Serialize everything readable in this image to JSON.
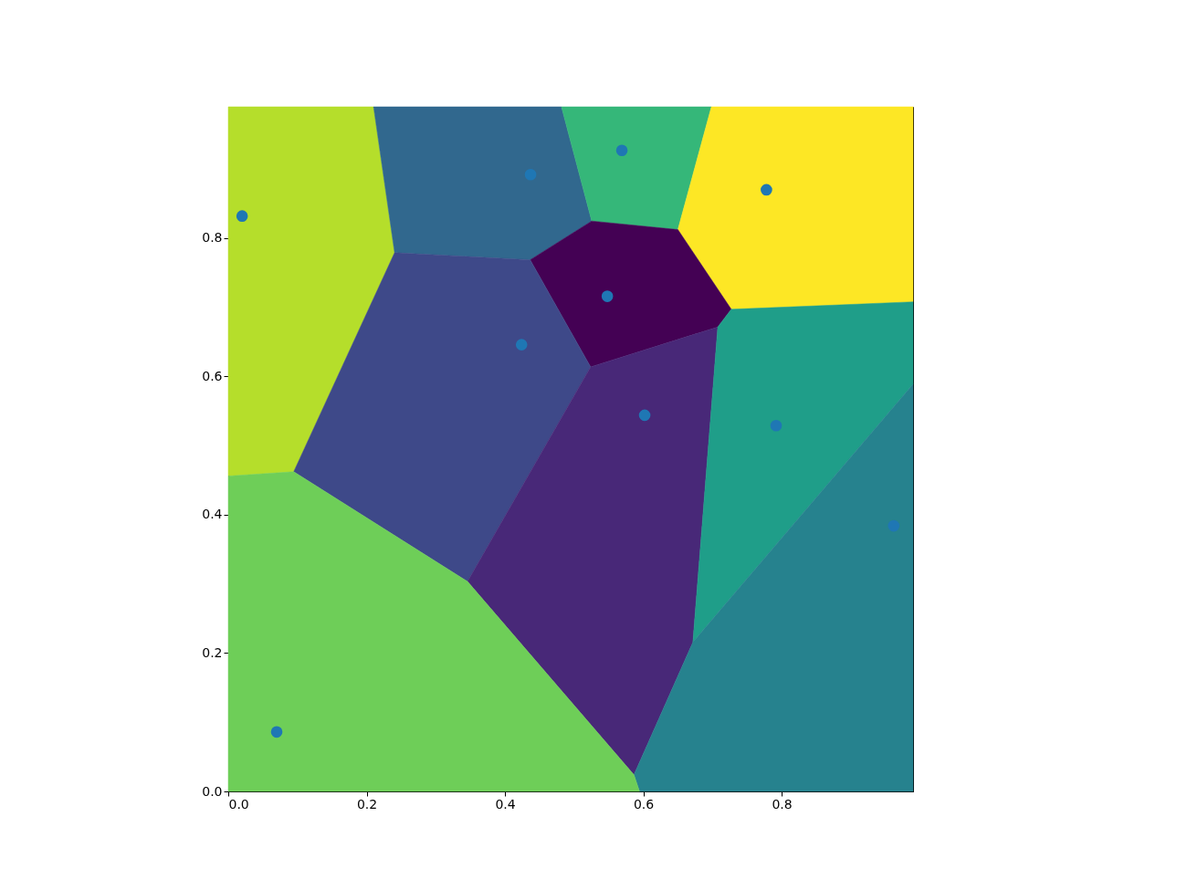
{
  "chart_data": {
    "type": "scatter",
    "x": [
      0.02,
      0.437,
      0.569,
      0.778,
      0.548,
      0.424,
      0.602,
      0.792,
      0.962,
      0.07
    ],
    "series": [
      {
        "color": "#1f77b4",
        "values": [
          0.832,
          0.892,
          0.927,
          0.87,
          0.716,
          0.646,
          0.544,
          0.529,
          0.384,
          0.086
        ]
      }
    ],
    "colors": [
      "#b5de2b",
      "#31688e",
      "#35b779",
      "#fde725",
      "#440154",
      "#3e4989",
      "#482878",
      "#1f9e89",
      "#26828e",
      "#6ece58"
    ],
    "marker": "circle",
    "xlim": [
      0,
      0.99
    ],
    "ylim": [
      0,
      0.99
    ],
    "xticks": [
      {
        "value": 0,
        "label": "0.0"
      },
      0.2,
      0.4,
      0.6,
      0.8
    ],
    "yticks": [
      {
        "value": 0,
        "label": "0.0"
      },
      0.2,
      0.4,
      0.6,
      0.8
    ],
    "grid": false
  }
}
